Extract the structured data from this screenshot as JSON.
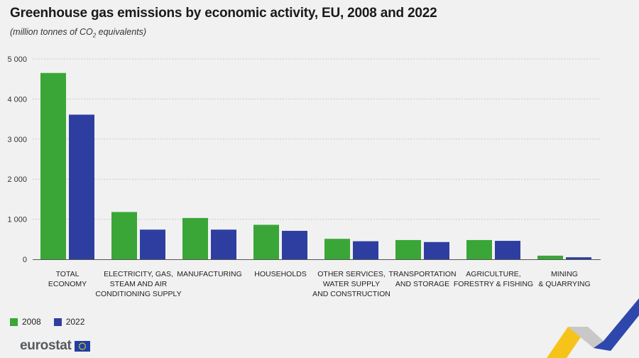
{
  "title": "Greenhouse gas emissions by economic activity, EU, 2008 and 2022",
  "subtitle": {
    "before": "(million tonnes of CO",
    "sub": "2",
    "after": " equivalents)"
  },
  "logo_text": "eurostat",
  "chart_data": {
    "type": "bar",
    "categories": [
      [
        "TOTAL",
        "ECONOMY"
      ],
      [
        "ELECTRICITY, GAS,",
        "STEAM AND AIR",
        "CONDITIONING SUPPLY"
      ],
      [
        "MANUFACTURING"
      ],
      [
        "HOUSEHOLDS"
      ],
      [
        "OTHER SERVICES,",
        "WATER SUPPLY",
        "AND CONSTRUCTION"
      ],
      [
        "TRANSPORTATION",
        "AND STORAGE"
      ],
      [
        "AGRICULTURE,",
        "FORESTRY & FISHING"
      ],
      [
        "MINING",
        "& QUARRYING"
      ]
    ],
    "series": [
      {
        "name": "2008",
        "color": "#3aa637",
        "values": [
          4650,
          1180,
          1030,
          860,
          510,
          480,
          480,
          90
        ]
      },
      {
        "name": "2022",
        "color": "#2e3ea0",
        "values": [
          3610,
          740,
          740,
          710,
          450,
          430,
          460,
          50
        ]
      }
    ],
    "ylim": [
      0,
      5000
    ],
    "yticks": [
      0,
      1000,
      2000,
      3000,
      4000,
      5000
    ],
    "ytick_labels": [
      "0",
      "1 000",
      "2 000",
      "3 000",
      "4 000",
      "5 000"
    ],
    "grid": true,
    "legend_position": "bottom-left"
  }
}
